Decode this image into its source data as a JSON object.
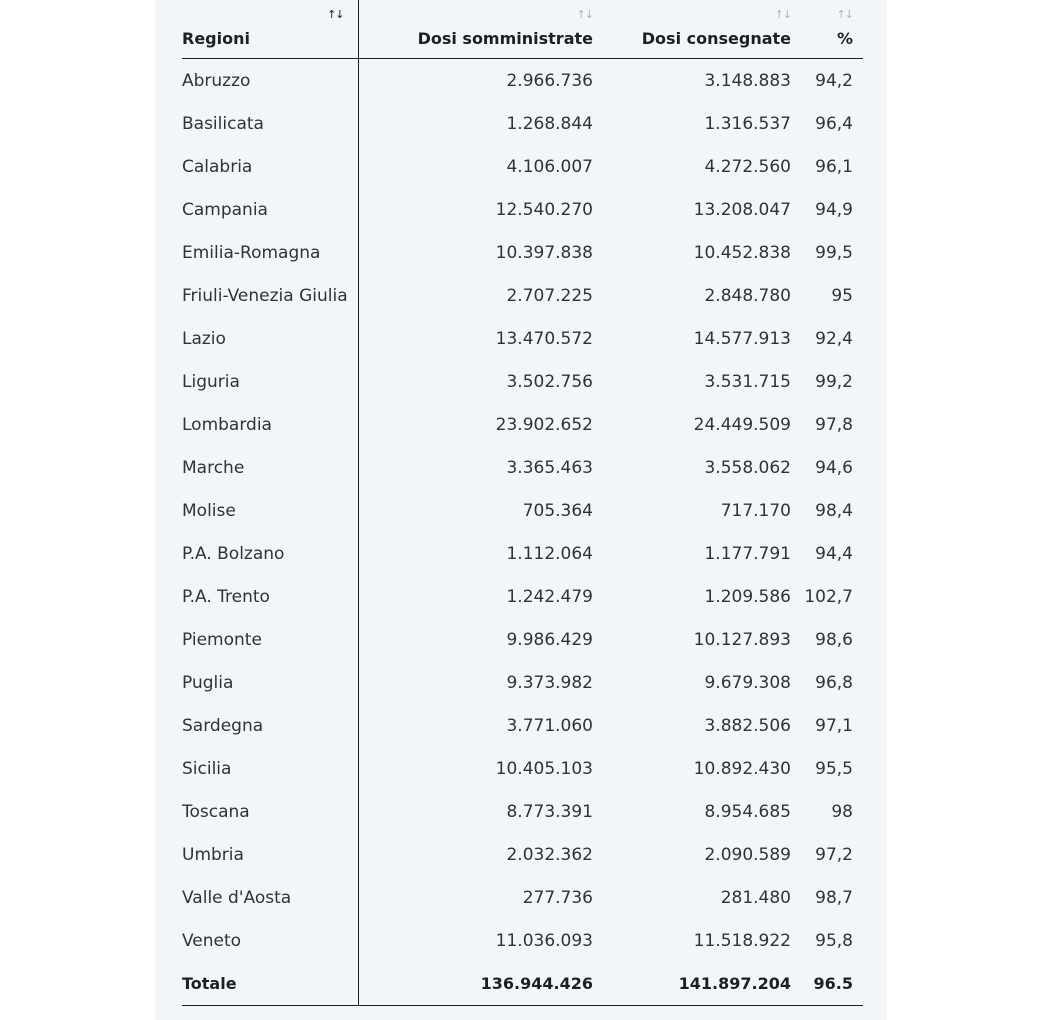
{
  "table": {
    "headers": {
      "region": "Regioni",
      "administered": "Dosi somministrate",
      "delivered": "Dosi consegnate",
      "percent": "%",
      "sort_icon": "↑↓"
    },
    "rows": [
      {
        "region": "Abruzzo",
        "administered": "2.966.736",
        "delivered": "3.148.883",
        "percent": "94,2"
      },
      {
        "region": "Basilicata",
        "administered": "1.268.844",
        "delivered": "1.316.537",
        "percent": "96,4"
      },
      {
        "region": "Calabria",
        "administered": "4.106.007",
        "delivered": "4.272.560",
        "percent": "96,1"
      },
      {
        "region": "Campania",
        "administered": "12.540.270",
        "delivered": "13.208.047",
        "percent": "94,9"
      },
      {
        "region": "Emilia-Romagna",
        "administered": "10.397.838",
        "delivered": "10.452.838",
        "percent": "99,5"
      },
      {
        "region": "Friuli-Venezia Giulia",
        "administered": "2.707.225",
        "delivered": "2.848.780",
        "percent": "95"
      },
      {
        "region": "Lazio",
        "administered": "13.470.572",
        "delivered": "14.577.913",
        "percent": "92,4"
      },
      {
        "region": "Liguria",
        "administered": "3.502.756",
        "delivered": "3.531.715",
        "percent": "99,2"
      },
      {
        "region": "Lombardia",
        "administered": "23.902.652",
        "delivered": "24.449.509",
        "percent": "97,8"
      },
      {
        "region": "Marche",
        "administered": "3.365.463",
        "delivered": "3.558.062",
        "percent": "94,6"
      },
      {
        "region": "Molise",
        "administered": "705.364",
        "delivered": "717.170",
        "percent": "98,4"
      },
      {
        "region": "P.A. Bolzano",
        "administered": "1.112.064",
        "delivered": "1.177.791",
        "percent": "94,4"
      },
      {
        "region": "P.A. Trento",
        "administered": "1.242.479",
        "delivered": "1.209.586",
        "percent": "102,7"
      },
      {
        "region": "Piemonte",
        "administered": "9.986.429",
        "delivered": "10.127.893",
        "percent": "98,6"
      },
      {
        "region": "Puglia",
        "administered": "9.373.982",
        "delivered": "9.679.308",
        "percent": "96,8"
      },
      {
        "region": "Sardegna",
        "administered": "3.771.060",
        "delivered": "3.882.506",
        "percent": "97,1"
      },
      {
        "region": "Sicilia",
        "administered": "10.405.103",
        "delivered": "10.892.430",
        "percent": "95,5"
      },
      {
        "region": "Toscana",
        "administered": "8.773.391",
        "delivered": "8.954.685",
        "percent": "98"
      },
      {
        "region": "Umbria",
        "administered": "2.032.362",
        "delivered": "2.090.589",
        "percent": "97,2"
      },
      {
        "region": "Valle d'Aosta",
        "administered": "277.736",
        "delivered": "281.480",
        "percent": "98,7"
      },
      {
        "region": "Veneto",
        "administered": "11.036.093",
        "delivered": "11.518.922",
        "percent": "95,8"
      }
    ],
    "total": {
      "region": "Totale",
      "administered": "136.944.426",
      "delivered": "141.897.204",
      "percent": "96.5"
    }
  }
}
